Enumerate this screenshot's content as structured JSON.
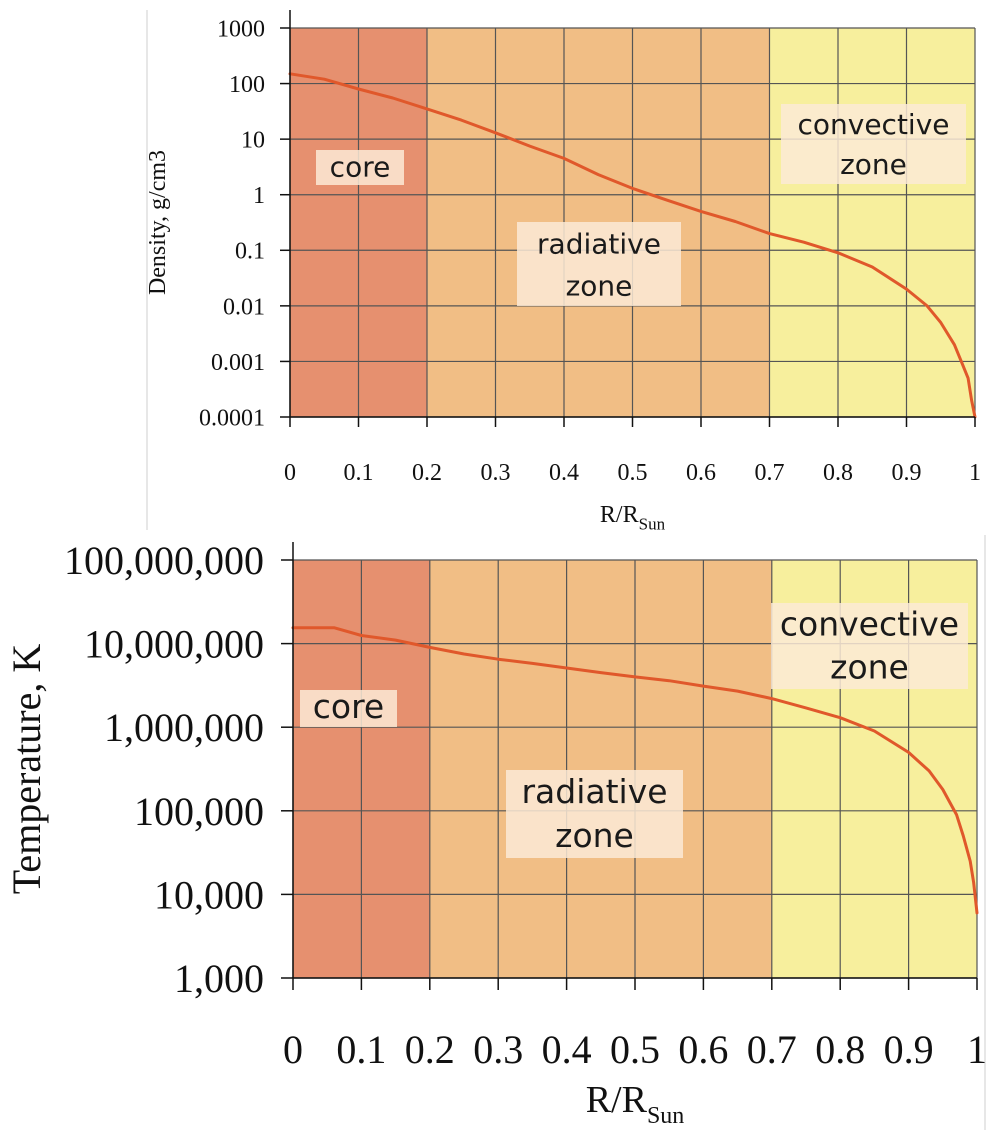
{
  "colors": {
    "core": "#e6906f",
    "radiative": "#f1be85",
    "convective": "#f7ef9d",
    "grid": "#555555",
    "curve": "#e0582b",
    "label_box": "#fbead6"
  },
  "chart_data": [
    {
      "type": "line",
      "xlabel": "R/R",
      "xlabel_sub": "Sun",
      "ylabel": "Density, g/cm3",
      "yscale": "log",
      "xlim": [
        0,
        1
      ],
      "ylim": [
        0.0001,
        1000
      ],
      "x_ticks": [
        "0",
        "0.1",
        "0.2",
        "0.3",
        "0.4",
        "0.5",
        "0.6",
        "0.7",
        "0.8",
        "0.9",
        "1"
      ],
      "y_ticks": [
        "1000",
        "100",
        "10",
        "1",
        "0.1",
        "0.01",
        "0.001",
        "0.0001"
      ],
      "zones": [
        {
          "name": "core",
          "lines": [
            "core"
          ],
          "from": 0,
          "to": 0.2
        },
        {
          "name": "radiative",
          "lines": [
            "radiative",
            "zone"
          ],
          "from": 0.2,
          "to": 0.7
        },
        {
          "name": "convective",
          "lines": [
            "convective",
            "zone"
          ],
          "from": 0.7,
          "to": 1
        }
      ],
      "series": [
        {
          "x": [
            0,
            0.05,
            0.1,
            0.15,
            0.2,
            0.25,
            0.3,
            0.35,
            0.4,
            0.45,
            0.5,
            0.55,
            0.6,
            0.65,
            0.7,
            0.75,
            0.8,
            0.85,
            0.9,
            0.93,
            0.95,
            0.97,
            0.98,
            0.99,
            0.995,
            1.0
          ],
          "y": [
            150,
            120,
            80,
            55,
            35,
            22,
            13,
            7.5,
            4.5,
            2.3,
            1.3,
            0.8,
            0.5,
            0.33,
            0.2,
            0.14,
            0.09,
            0.05,
            0.02,
            0.01,
            0.005,
            0.002,
            0.001,
            0.0005,
            0.0002,
            0.0001
          ]
        }
      ]
    },
    {
      "type": "line",
      "xlabel": "R/R",
      "xlabel_sub": "Sun",
      "ylabel": "Temperature, K",
      "yscale": "log",
      "xlim": [
        0,
        1
      ],
      "ylim": [
        1000,
        100000000
      ],
      "x_ticks": [
        "0",
        "0.1",
        "0.2",
        "0.3",
        "0.4",
        "0.5",
        "0.6",
        "0.7",
        "0.8",
        "0.9",
        "1"
      ],
      "y_ticks": [
        "100,000,000",
        "10,000,000",
        "1,000,000",
        "100,000",
        "10,000",
        "1,000"
      ],
      "zones": [
        {
          "name": "core",
          "lines": [
            "core"
          ],
          "from": 0,
          "to": 0.2
        },
        {
          "name": "radiative",
          "lines": [
            "radiative",
            "zone"
          ],
          "from": 0.2,
          "to": 0.7
        },
        {
          "name": "convective",
          "lines": [
            "convective",
            "zone"
          ],
          "from": 0.7,
          "to": 1
        }
      ],
      "series": [
        {
          "x": [
            0,
            0.06,
            0.1,
            0.15,
            0.2,
            0.25,
            0.3,
            0.35,
            0.4,
            0.45,
            0.5,
            0.55,
            0.6,
            0.65,
            0.7,
            0.75,
            0.8,
            0.85,
            0.9,
            0.93,
            0.95,
            0.97,
            0.98,
            0.99,
            0.995,
            1.0
          ],
          "y": [
            15500000,
            15500000,
            12500000,
            11000000,
            9000000,
            7500000,
            6500000,
            5800000,
            5100000,
            4500000,
            4000000,
            3600000,
            3100000,
            2700000,
            2200000,
            1700000,
            1300000,
            900000,
            500000,
            300000,
            180000,
            90000,
            50000,
            25000,
            14000,
            6000
          ]
        }
      ]
    }
  ]
}
